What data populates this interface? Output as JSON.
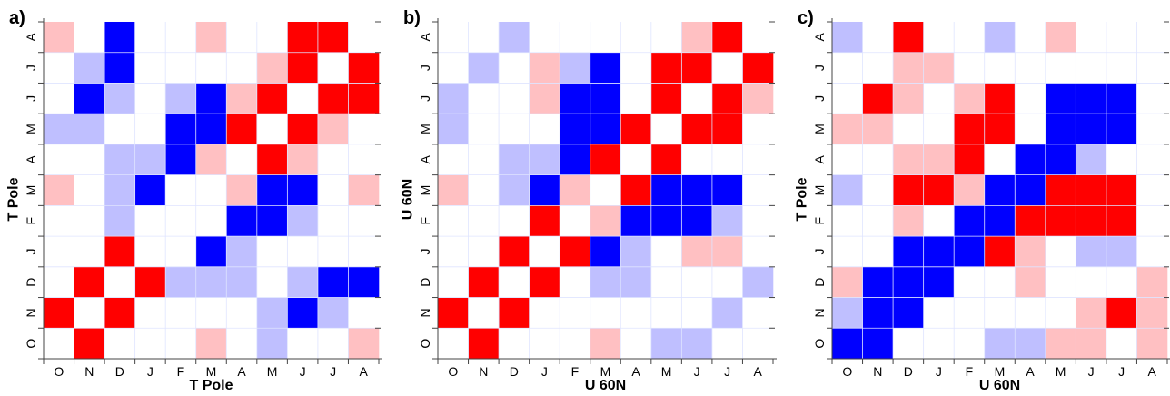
{
  "colors": {
    "strong_pos": "#ff0000",
    "weak_pos": "#ffc0c2",
    "strong_neg": "#0000ff",
    "weak_neg": "#bfbfff",
    "neutral": "#ffffff",
    "grid": "#dfe4ff",
    "frame": "#444444"
  },
  "chart_data": [
    {
      "type": "heatmap",
      "panel": "a)",
      "xlabel": "T Pole",
      "ylabel": "T Pole",
      "categories": [
        "O",
        "N",
        "D",
        "J",
        "F",
        "M",
        "A",
        "M",
        "J",
        "J",
        "A"
      ],
      "value_scale": "2 = strong positive (red), 1 = weak positive (pink), 0 = none, -1 = weak negative (light blue), -2 = strong negative (blue)",
      "rows_top_to_bottom": [
        [
          1,
          0,
          -2,
          0,
          0,
          1,
          0,
          0,
          2,
          2,
          0
        ],
        [
          0,
          -1,
          -2,
          0,
          0,
          0,
          0,
          1,
          2,
          0,
          2
        ],
        [
          0,
          -2,
          -1,
          0,
          -1,
          -2,
          1,
          2,
          0,
          2,
          2
        ],
        [
          -1,
          -1,
          0,
          0,
          -2,
          -2,
          2,
          0,
          2,
          1,
          0
        ],
        [
          0,
          0,
          -1,
          -1,
          -2,
          1,
          0,
          2,
          1,
          0,
          0
        ],
        [
          1,
          0,
          -1,
          -2,
          0,
          0,
          1,
          -2,
          -2,
          0,
          1
        ],
        [
          0,
          0,
          -1,
          0,
          0,
          0,
          -2,
          -2,
          -1,
          0,
          0
        ],
        [
          0,
          0,
          2,
          0,
          0,
          -2,
          -1,
          0,
          0,
          0,
          0
        ],
        [
          0,
          2,
          0,
          2,
          -1,
          -1,
          -1,
          0,
          -1,
          -2,
          -2
        ],
        [
          2,
          0,
          2,
          0,
          0,
          0,
          0,
          -1,
          -2,
          -1,
          0
        ],
        [
          0,
          2,
          0,
          0,
          0,
          1,
          0,
          -1,
          0,
          0,
          1
        ]
      ]
    },
    {
      "type": "heatmap",
      "panel": "b)",
      "xlabel": "U 60N",
      "ylabel": "U 60N",
      "categories": [
        "O",
        "N",
        "D",
        "J",
        "F",
        "M",
        "A",
        "M",
        "J",
        "J",
        "A"
      ],
      "value_scale": "2 = strong positive (red), 1 = weak positive (pink), 0 = none, -1 = weak negative (light blue), -2 = strong negative (blue)",
      "rows_top_to_bottom": [
        [
          0,
          0,
          -1,
          0,
          0,
          0,
          0,
          0,
          1,
          2,
          0
        ],
        [
          0,
          -1,
          0,
          1,
          -1,
          -2,
          0,
          2,
          2,
          0,
          2
        ],
        [
          -1,
          0,
          0,
          1,
          -2,
          -2,
          0,
          2,
          0,
          2,
          1
        ],
        [
          -1,
          0,
          0,
          0,
          -2,
          -2,
          2,
          0,
          2,
          2,
          0
        ],
        [
          0,
          0,
          -1,
          -1,
          -2,
          2,
          0,
          2,
          0,
          0,
          0
        ],
        [
          1,
          0,
          -1,
          -2,
          1,
          0,
          2,
          -2,
          -2,
          -2,
          0
        ],
        [
          0,
          0,
          0,
          2,
          0,
          1,
          -2,
          -2,
          -2,
          -1,
          0
        ],
        [
          0,
          0,
          2,
          0,
          2,
          -2,
          -1,
          0,
          1,
          1,
          0
        ],
        [
          0,
          2,
          0,
          2,
          0,
          -1,
          -1,
          0,
          0,
          0,
          -1
        ],
        [
          2,
          0,
          2,
          0,
          0,
          0,
          0,
          0,
          0,
          -1,
          0
        ],
        [
          0,
          2,
          0,
          0,
          0,
          1,
          0,
          -1,
          -1,
          0,
          0
        ]
      ]
    },
    {
      "type": "heatmap",
      "panel": "c)",
      "xlabel": "U 60N",
      "ylabel": "T Pole",
      "categories": [
        "O",
        "N",
        "D",
        "J",
        "F",
        "M",
        "A",
        "M",
        "J",
        "J",
        "A"
      ],
      "value_scale": "2 = strong positive (red), 1 = weak positive (pink), 0 = none, -1 = weak negative (light blue), -2 = strong negative (blue)",
      "rows_top_to_bottom": [
        [
          -1,
          0,
          2,
          0,
          0,
          -1,
          0,
          1,
          0,
          0,
          0
        ],
        [
          0,
          0,
          1,
          1,
          0,
          0,
          0,
          0,
          0,
          0,
          0
        ],
        [
          0,
          2,
          1,
          0,
          1,
          2,
          0,
          -2,
          -2,
          -2,
          0
        ],
        [
          1,
          1,
          0,
          0,
          2,
          2,
          0,
          -2,
          -2,
          -2,
          0
        ],
        [
          0,
          0,
          1,
          1,
          2,
          0,
          -2,
          -2,
          -1,
          0,
          0
        ],
        [
          -1,
          0,
          2,
          2,
          1,
          -2,
          -2,
          2,
          2,
          2,
          0
        ],
        [
          0,
          0,
          1,
          0,
          -2,
          -2,
          2,
          2,
          2,
          2,
          0
        ],
        [
          0,
          0,
          -2,
          -2,
          -2,
          2,
          1,
          0,
          -1,
          -1,
          0
        ],
        [
          1,
          -2,
          -2,
          -2,
          0,
          0,
          1,
          0,
          0,
          0,
          1
        ],
        [
          -1,
          -2,
          -2,
          0,
          0,
          0,
          0,
          0,
          1,
          2,
          1
        ],
        [
          -2,
          -2,
          0,
          0,
          0,
          -1,
          -1,
          1,
          1,
          0,
          1
        ]
      ]
    }
  ]
}
